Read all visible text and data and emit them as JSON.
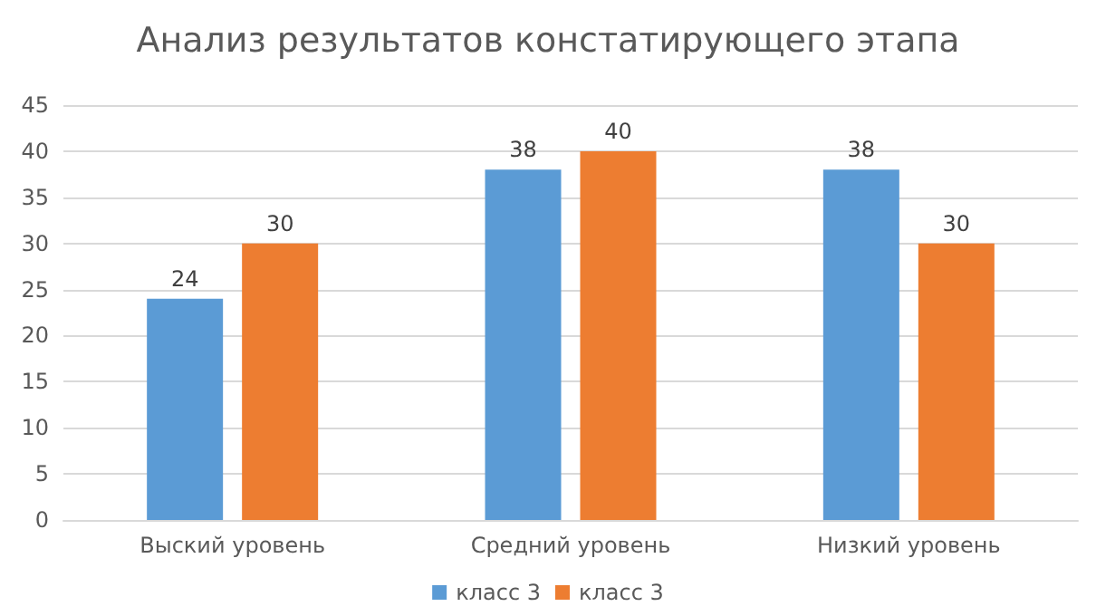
{
  "chart_data": {
    "type": "bar",
    "title": "Анализ результатов констатирующего этапа",
    "categories": [
      "Выский уровень",
      "Средний уровень",
      "Низкий уровень"
    ],
    "series": [
      {
        "name": "класс 3",
        "color": "#5b9bd5",
        "values": [
          24,
          38,
          38
        ]
      },
      {
        "name": "класс 3",
        "color": "#ed7d31",
        "values": [
          30,
          40,
          30
        ]
      }
    ],
    "ylim": [
      0,
      45
    ],
    "yticks": [
      0,
      5,
      10,
      15,
      20,
      25,
      30,
      35,
      40,
      45
    ],
    "grid": "y",
    "legend": "bottom",
    "data_labels": true
  }
}
